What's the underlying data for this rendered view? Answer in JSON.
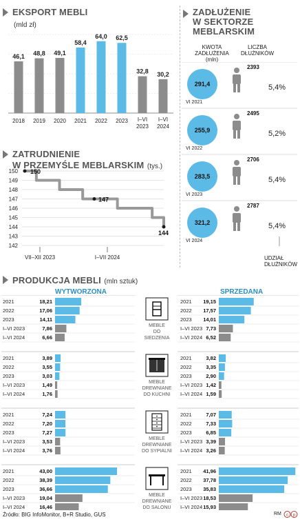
{
  "colors": {
    "blue": "#5bbbe6",
    "gray": "#8c8c8c",
    "dark": "#1a1a1a",
    "line": "#999999",
    "title_gray": "#555555",
    "blue_text": "#2a8fc2"
  },
  "export": {
    "title": "EKSPORT MEBLI",
    "unit": "(mld zł)"
  },
  "employment": {
    "title_line1": "ZATRUDNIENIE",
    "title_line2": "W PRZEMYŚLE MEBLARSKIM",
    "unit": "(tys.)"
  },
  "debt": {
    "title_line1": "ZADŁUŻENIE",
    "title_line2": "W SEKTORZE",
    "title_line3": "MEBLARSKIM",
    "col1_line1": "KWOTA",
    "col1_line2": "ZADŁUŻENIA",
    "col1_line3": "(mln)",
    "col2_line1": "LICZBA",
    "col2_line2": "DŁUŻNIKÓW",
    "share_line1": "UDZIAŁ",
    "share_line2": "DŁUŻNIKÓW"
  },
  "production": {
    "title": "PRODUKCJA MEBLI",
    "unit": "(mln sztuk)",
    "made_label": "WYTWORZONA",
    "sold_label": "SPRZEDANA"
  },
  "footer": {
    "source": "Źródło: BIG InfoMonitor, B+R Studio, GUS",
    "credit": "RM"
  },
  "chart_data": [
    {
      "type": "bar",
      "title": "EKSPORT MEBLI",
      "ylabel": "(mld zł)",
      "categories": [
        "2018",
        "2019",
        "2020",
        "2021",
        "2022",
        "2023",
        "I–VI 2023",
        "I–VI 2024"
      ],
      "values": [
        46.1,
        48.8,
        49.1,
        58.4,
        64.0,
        62.5,
        32.8,
        30.2
      ],
      "value_labels": [
        "46,1",
        "48,8",
        "49,1",
        "58,4",
        "64,0",
        "62,5",
        "32,8",
        "30,2"
      ],
      "highlight": [
        false,
        false,
        false,
        true,
        true,
        true,
        false,
        false
      ],
      "ylim": [
        0,
        70
      ]
    },
    {
      "type": "line",
      "title": "ZATRUDNIENIE W PRZEMYŚLE MEBLARSKIM",
      "ylabel": "(tys.)",
      "yticks": [
        "150",
        "149",
        "148",
        "147",
        "146",
        "145",
        "144",
        "143",
        "142"
      ],
      "ylim": [
        142,
        150
      ],
      "x_labels": [
        "VII–XII 2023",
        "I–VII 2024"
      ],
      "values": [
        150,
        149,
        149,
        148,
        148,
        147,
        147,
        147,
        146,
        146,
        146,
        145,
        144
      ],
      "annotations": [
        {
          "index": 0,
          "text": "150"
        },
        {
          "index": 6,
          "text": "147"
        },
        {
          "index": 12,
          "text": "144"
        }
      ]
    },
    {
      "type": "table",
      "title": "ZADŁUŻENIE W SEKTORZE MEBLARSKIM",
      "rows": [
        {
          "period": "VI 2021",
          "amount": "291,4",
          "debtors": "2393",
          "share": "5,4%"
        },
        {
          "period": "VI 2022",
          "amount": "255,9",
          "debtors": "2495",
          "share": "5,2%"
        },
        {
          "period": "VI 2023",
          "amount": "283,5",
          "debtors": "2706",
          "share": "5,4%"
        },
        {
          "period": "VI 2024",
          "amount": "321,2",
          "debtors": "2787",
          "share": "5,4%"
        }
      ]
    },
    {
      "type": "bar",
      "title": "PRODUKCJA MEBLI",
      "ylabel": "(mln sztuk)",
      "max": 43,
      "groups": [
        {
          "label_lines": [
            "MEBLE",
            "DO",
            "SIEDZENIA"
          ],
          "icon": "chair-icon",
          "periods": [
            "2021",
            "2022",
            "2023",
            "I–VI 2023",
            "I–VI 2024"
          ],
          "made": [
            18.21,
            17.06,
            14.11,
            7.86,
            6.66
          ],
          "made_labels": [
            "18,21",
            "17,06",
            "14,11",
            "7,86",
            "6,66"
          ],
          "sold": [
            19.15,
            17.57,
            14.01,
            7.73,
            6.52
          ],
          "sold_labels": [
            "19,15",
            "17,57",
            "14,01",
            "7,73",
            "6,52"
          ]
        },
        {
          "label_lines": [
            "MEBLE",
            "DREWNIANE",
            "DO KUCHNI"
          ],
          "icon": "kitchen-cabinet-icon",
          "periods": [
            "2021",
            "2022",
            "2023",
            "I–VI 2023",
            "I–VI 2024"
          ],
          "made": [
            3.89,
            3.55,
            3.03,
            1.49,
            1.76
          ],
          "made_labels": [
            "3,89",
            "3,55",
            "3,03",
            "1,49",
            "1,76"
          ],
          "sold": [
            3.82,
            3.35,
            2.9,
            1.42,
            1.59
          ],
          "sold_labels": [
            "3,82",
            "3,35",
            "2,90",
            "1,42",
            "1,59"
          ]
        },
        {
          "label_lines": [
            "MEBLE",
            "DREWNIANE",
            "DO SYPIALNI"
          ],
          "icon": "dresser-icon",
          "periods": [
            "2021",
            "2022",
            "2023",
            "I–VI 2023",
            "I–VI 2024"
          ],
          "made": [
            7.24,
            7.2,
            7.27,
            3.53,
            3.76
          ],
          "made_labels": [
            "7,24",
            "7,20",
            "7,27",
            "3,53",
            "3,76"
          ],
          "sold": [
            7.07,
            7.33,
            6.85,
            3.39,
            3.26
          ],
          "sold_labels": [
            "7,07",
            "7,33",
            "6,85",
            "3,39",
            "3,26"
          ]
        },
        {
          "label_lines": [
            "MEBLE",
            "DREWNIANE",
            "DO SALONU"
          ],
          "icon": "table-icon",
          "periods": [
            "2021",
            "2022",
            "2023",
            "I–VI 2023",
            "I–VI 2024"
          ],
          "made": [
            43.0,
            38.39,
            36.66,
            19.04,
            16.46
          ],
          "made_labels": [
            "43,00",
            "38,39",
            "36,66",
            "19,04",
            "16,46"
          ],
          "sold": [
            41.96,
            37.78,
            35.83,
            18.53,
            15.93
          ],
          "sold_labels": [
            "41,96",
            "37,78",
            "35,83",
            "18,53",
            "15,93"
          ]
        }
      ]
    }
  ]
}
